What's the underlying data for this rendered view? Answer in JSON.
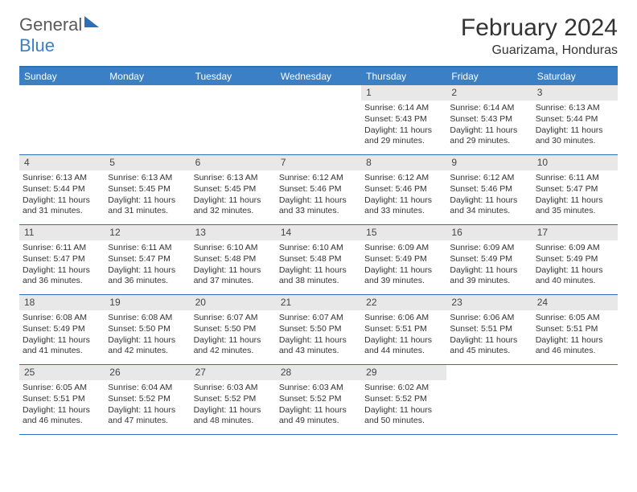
{
  "logo": {
    "text_gray": "General",
    "text_blue": "Blue"
  },
  "title": "February 2024",
  "location": "Guarizama, Honduras",
  "colors": {
    "header_bg": "#3b7fc4",
    "border": "#2e6fb5",
    "daynum_bg": "#e8e8e8",
    "text": "#333333"
  },
  "day_labels": [
    "Sunday",
    "Monday",
    "Tuesday",
    "Wednesday",
    "Thursday",
    "Friday",
    "Saturday"
  ],
  "layout": {
    "columns": 7,
    "rows": 5,
    "first_weekday_slot": 4
  },
  "days": [
    {
      "n": 1,
      "sr": "6:14 AM",
      "ss": "5:43 PM",
      "dl": "11 hours and 29 minutes."
    },
    {
      "n": 2,
      "sr": "6:14 AM",
      "ss": "5:43 PM",
      "dl": "11 hours and 29 minutes."
    },
    {
      "n": 3,
      "sr": "6:13 AM",
      "ss": "5:44 PM",
      "dl": "11 hours and 30 minutes."
    },
    {
      "n": 4,
      "sr": "6:13 AM",
      "ss": "5:44 PM",
      "dl": "11 hours and 31 minutes."
    },
    {
      "n": 5,
      "sr": "6:13 AM",
      "ss": "5:45 PM",
      "dl": "11 hours and 31 minutes."
    },
    {
      "n": 6,
      "sr": "6:13 AM",
      "ss": "5:45 PM",
      "dl": "11 hours and 32 minutes."
    },
    {
      "n": 7,
      "sr": "6:12 AM",
      "ss": "5:46 PM",
      "dl": "11 hours and 33 minutes."
    },
    {
      "n": 8,
      "sr": "6:12 AM",
      "ss": "5:46 PM",
      "dl": "11 hours and 33 minutes."
    },
    {
      "n": 9,
      "sr": "6:12 AM",
      "ss": "5:46 PM",
      "dl": "11 hours and 34 minutes."
    },
    {
      "n": 10,
      "sr": "6:11 AM",
      "ss": "5:47 PM",
      "dl": "11 hours and 35 minutes."
    },
    {
      "n": 11,
      "sr": "6:11 AM",
      "ss": "5:47 PM",
      "dl": "11 hours and 36 minutes."
    },
    {
      "n": 12,
      "sr": "6:11 AM",
      "ss": "5:47 PM",
      "dl": "11 hours and 36 minutes."
    },
    {
      "n": 13,
      "sr": "6:10 AM",
      "ss": "5:48 PM",
      "dl": "11 hours and 37 minutes."
    },
    {
      "n": 14,
      "sr": "6:10 AM",
      "ss": "5:48 PM",
      "dl": "11 hours and 38 minutes."
    },
    {
      "n": 15,
      "sr": "6:09 AM",
      "ss": "5:49 PM",
      "dl": "11 hours and 39 minutes."
    },
    {
      "n": 16,
      "sr": "6:09 AM",
      "ss": "5:49 PM",
      "dl": "11 hours and 39 minutes."
    },
    {
      "n": 17,
      "sr": "6:09 AM",
      "ss": "5:49 PM",
      "dl": "11 hours and 40 minutes."
    },
    {
      "n": 18,
      "sr": "6:08 AM",
      "ss": "5:49 PM",
      "dl": "11 hours and 41 minutes."
    },
    {
      "n": 19,
      "sr": "6:08 AM",
      "ss": "5:50 PM",
      "dl": "11 hours and 42 minutes."
    },
    {
      "n": 20,
      "sr": "6:07 AM",
      "ss": "5:50 PM",
      "dl": "11 hours and 42 minutes."
    },
    {
      "n": 21,
      "sr": "6:07 AM",
      "ss": "5:50 PM",
      "dl": "11 hours and 43 minutes."
    },
    {
      "n": 22,
      "sr": "6:06 AM",
      "ss": "5:51 PM",
      "dl": "11 hours and 44 minutes."
    },
    {
      "n": 23,
      "sr": "6:06 AM",
      "ss": "5:51 PM",
      "dl": "11 hours and 45 minutes."
    },
    {
      "n": 24,
      "sr": "6:05 AM",
      "ss": "5:51 PM",
      "dl": "11 hours and 46 minutes."
    },
    {
      "n": 25,
      "sr": "6:05 AM",
      "ss": "5:51 PM",
      "dl": "11 hours and 46 minutes."
    },
    {
      "n": 26,
      "sr": "6:04 AM",
      "ss": "5:52 PM",
      "dl": "11 hours and 47 minutes."
    },
    {
      "n": 27,
      "sr": "6:03 AM",
      "ss": "5:52 PM",
      "dl": "11 hours and 48 minutes."
    },
    {
      "n": 28,
      "sr": "6:03 AM",
      "ss": "5:52 PM",
      "dl": "11 hours and 49 minutes."
    },
    {
      "n": 29,
      "sr": "6:02 AM",
      "ss": "5:52 PM",
      "dl": "11 hours and 50 minutes."
    }
  ],
  "labels": {
    "sunrise": "Sunrise:",
    "sunset": "Sunset:",
    "daylight": "Daylight:"
  }
}
